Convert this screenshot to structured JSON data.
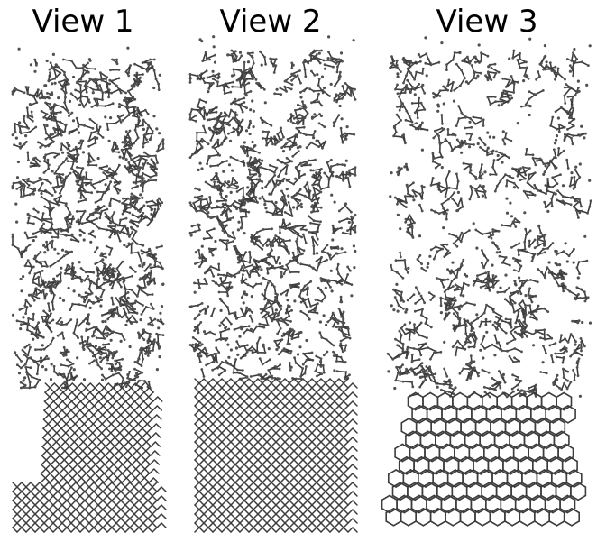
{
  "views": [
    {
      "title": "View 1",
      "crystal": "square-lattice",
      "amorphous": "network"
    },
    {
      "title": "View 2",
      "crystal": "square-lattice",
      "amorphous": "network"
    },
    {
      "title": "View 3",
      "crystal": "hexagonal-lattice",
      "amorphous": "network"
    }
  ],
  "colors": {
    "atom": "#505050",
    "bond": "#3c3c3c",
    "background": "#ffffff"
  }
}
